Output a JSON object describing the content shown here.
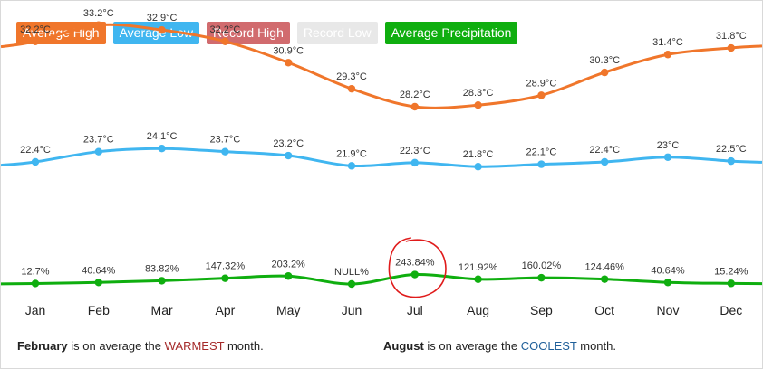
{
  "legend": {
    "avg_high": {
      "label": "Average High",
      "color": "#f0762b"
    },
    "avg_low": {
      "label": "Average Low",
      "color": "#40b6f0"
    },
    "record_high": {
      "label": "Record High",
      "color": "#d16b6e"
    },
    "record_low": {
      "label": "Record Low",
      "color": "#e8e8e8"
    },
    "avg_precip": {
      "label": "Average Precipitation",
      "color": "#0fae0f"
    }
  },
  "chart_data": {
    "type": "line",
    "categories": [
      "Jan",
      "Feb",
      "Mar",
      "Apr",
      "May",
      "Jun",
      "Jul",
      "Aug",
      "Sep",
      "Oct",
      "Nov",
      "Dec"
    ],
    "series": [
      {
        "name": "Average High",
        "values": [
          32.2,
          33.2,
          32.9,
          32.2,
          30.9,
          29.3,
          28.2,
          28.3,
          28.9,
          30.3,
          31.4,
          31.8
        ],
        "labels": [
          "32.2°C",
          "33.2°C",
          "32.9°C",
          "32.2°C",
          "30.9°C",
          "29.3°C",
          "28.2°C",
          "28.3°C",
          "28.9°C",
          "30.3°C",
          "31.4°C",
          "31.8°C"
        ],
        "color": "#f0762b"
      },
      {
        "name": "Average Low",
        "values": [
          22.4,
          23.7,
          24.1,
          23.7,
          23.2,
          21.9,
          22.3,
          21.8,
          22.1,
          22.4,
          23,
          22.5
        ],
        "labels": [
          "22.4°C",
          "23.7°C",
          "24.1°C",
          "23.7°C",
          "23.2°C",
          "21.9°C",
          "22.3°C",
          "21.8°C",
          "22.1°C",
          "22.4°C",
          "23°C",
          "22.5°C"
        ],
        "color": "#40b6f0"
      },
      {
        "name": "Average Precipitation",
        "values": [
          12.7,
          40.64,
          83.82,
          147.32,
          203.2,
          0,
          243.84,
          121.92,
          160.02,
          124.46,
          40.64,
          15.24
        ],
        "labels": [
          "12.7%",
          "40.64%",
          "83.82%",
          "147.32%",
          "203.2%",
          "NULL%",
          "243.84%",
          "121.92%",
          "160.02%",
          "124.46%",
          "40.64%",
          "15.24%"
        ],
        "color": "#0fae0f"
      }
    ],
    "annotations": [
      "red circle around Jul precipitation label"
    ]
  },
  "footer": {
    "warm_month": "February",
    "warm_text": " is on average the ",
    "warm_word": "WARMEST",
    "warm_tail": " month.",
    "cool_month": "August",
    "cool_text": " is on average the ",
    "cool_word": "COOLEST",
    "cool_tail": " month."
  }
}
